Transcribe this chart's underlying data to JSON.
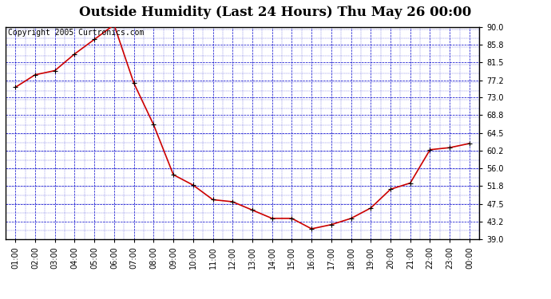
{
  "title": "Outside Humidity (Last 24 Hours) Thu May 26 00:00",
  "copyright_text": "Copyright 2005 Curtronics.com",
  "x_labels": [
    "01:00",
    "02:00",
    "03:00",
    "04:00",
    "05:00",
    "06:00",
    "07:00",
    "08:00",
    "09:00",
    "10:00",
    "11:00",
    "12:00",
    "13:00",
    "14:00",
    "15:00",
    "16:00",
    "17:00",
    "18:00",
    "19:00",
    "20:00",
    "21:00",
    "22:00",
    "23:00",
    "00:00"
  ],
  "y_values": [
    75.5,
    78.5,
    79.5,
    83.5,
    87.0,
    90.5,
    76.5,
    66.5,
    54.5,
    52.0,
    48.5,
    48.0,
    46.0,
    44.0,
    44.0,
    41.5,
    42.5,
    44.0,
    46.5,
    51.0,
    52.5,
    60.5,
    61.0,
    62.0
  ],
  "line_color": "#cc0000",
  "marker_color": "#000000",
  "bg_color": "#ffffff",
  "plot_bg_color": "#ffffff",
  "grid_color": "#0000cc",
  "title_color": "#000000",
  "axis_color": "#000000",
  "ylim": [
    39.0,
    90.0
  ],
  "yticks": [
    39.0,
    43.2,
    47.5,
    51.8,
    56.0,
    60.2,
    64.5,
    68.8,
    73.0,
    77.2,
    81.5,
    85.8,
    90.0
  ],
  "title_fontsize": 12,
  "tick_fontsize": 7,
  "copyright_fontsize": 7,
  "fig_width": 6.9,
  "fig_height": 3.75,
  "dpi": 100
}
